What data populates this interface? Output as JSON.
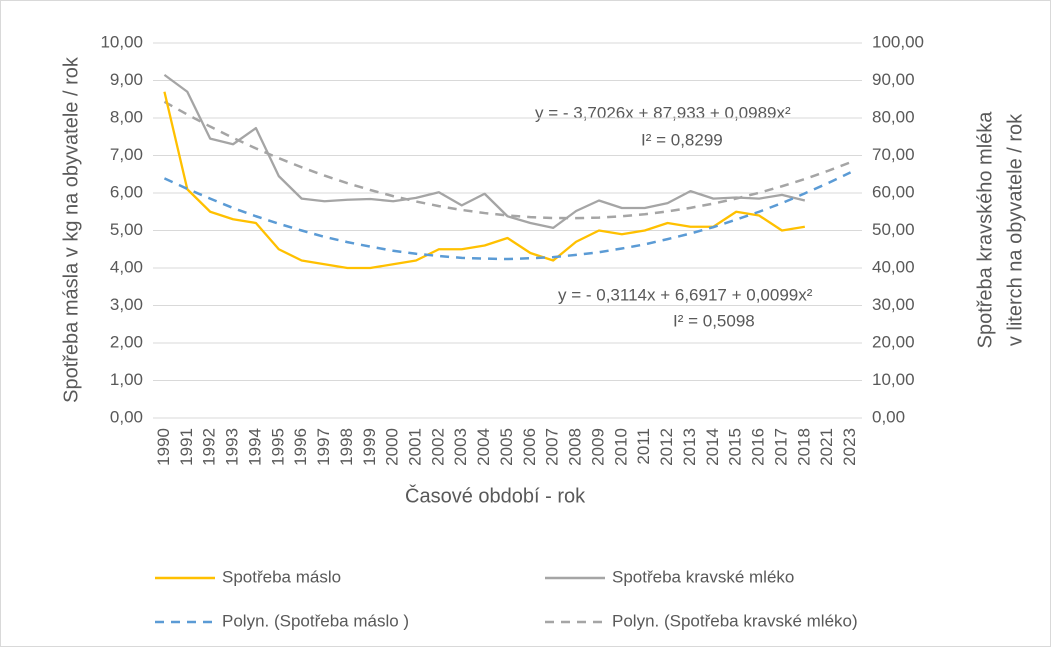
{
  "chart_data": {
    "type": "line",
    "xlabel": "Časové období - rok",
    "ylabel": "Spotřeba másla v kg na obyvatele / rok",
    "y2label": [
      "Spotřeba kravského mléka",
      "v literch na obyvatele / rok"
    ],
    "categories": [
      "1990",
      "1991",
      "1992",
      "1993",
      "1994",
      "1995",
      "1996",
      "1997",
      "1998",
      "1999",
      "2000",
      "2001",
      "2002",
      "2003",
      "2004",
      "2005",
      "2006",
      "2007",
      "2008",
      "2009",
      "2010",
      "2011",
      "2012",
      "2013",
      "2014",
      "2015",
      "2016",
      "2017",
      "2018",
      "2021",
      "2023"
    ],
    "ylim": [
      0,
      10
    ],
    "yticks": [
      {
        "value": 0,
        "label": "0,00"
      },
      {
        "value": 1,
        "label": "1,00"
      },
      {
        "value": 2,
        "label": "2,00"
      },
      {
        "value": 3,
        "label": "3,00"
      },
      {
        "value": 4,
        "label": "4,00"
      },
      {
        "value": 5,
        "label": "5,00"
      },
      {
        "value": 6,
        "label": "6,00"
      },
      {
        "value": 7,
        "label": "7,00"
      },
      {
        "value": 8,
        "label": "8,00"
      },
      {
        "value": 9,
        "label": "9,00"
      },
      {
        "value": 10,
        "label": "10,00"
      }
    ],
    "y2lim": [
      0,
      100
    ],
    "y2ticks": [
      {
        "value": 0,
        "label": "0,00"
      },
      {
        "value": 10,
        "label": "10,00"
      },
      {
        "value": 20,
        "label": "20,00"
      },
      {
        "value": 30,
        "label": "30,00"
      },
      {
        "value": 40,
        "label": "40,00"
      },
      {
        "value": 50,
        "label": "50,00"
      },
      {
        "value": 60,
        "label": "60,00"
      },
      {
        "value": 70,
        "label": "70,00"
      },
      {
        "value": 80,
        "label": "80,00"
      },
      {
        "value": 90,
        "label": "90,00"
      },
      {
        "value": 100,
        "label": "100,00"
      }
    ],
    "grid": true,
    "legend": "bottom",
    "series": [
      {
        "name": "Spotřeba máslo",
        "color": "#ffc000",
        "style": "solid",
        "values": [
          8.7,
          6.1,
          5.5,
          5.3,
          5.2,
          4.5,
          4.2,
          4.1,
          4.0,
          4.0,
          4.1,
          4.2,
          4.5,
          4.5,
          4.6,
          4.8,
          4.4,
          4.2,
          4.7,
          5.0,
          4.9,
          5.0,
          5.2,
          5.1,
          5.1,
          5.5,
          5.4,
          5.0,
          5.1,
          null,
          null
        ]
      },
      {
        "name": "Spotřeba kravské mléko",
        "color": "#a5a5a5",
        "style": "solid",
        "axis": "y2",
        "values": [
          91.5,
          87,
          74.5,
          73,
          77.3,
          64.5,
          58.5,
          57.8,
          58.2,
          58.4,
          57.8,
          58.7,
          60.2,
          56.7,
          59.8,
          53.8,
          52,
          50.7,
          55.2,
          58,
          56,
          56,
          57.3,
          60.5,
          58.5,
          58.8,
          58.5,
          59.5,
          58,
          null,
          null
        ]
      },
      {
        "name": "Polyn. (Spotřeba máslo )",
        "color": "#5b9bd5",
        "style": "dashed",
        "values": [
          6.39,
          6.11,
          5.85,
          5.6,
          5.38,
          5.18,
          5.0,
          4.83,
          4.69,
          4.57,
          4.46,
          4.38,
          4.32,
          4.27,
          4.25,
          4.24,
          4.26,
          4.29,
          4.35,
          4.42,
          4.52,
          4.63,
          4.77,
          4.92,
          5.09,
          5.29,
          5.5,
          5.73,
          5.99,
          6.26,
          6.55
        ]
      },
      {
        "name": "Polyn. (Spotřeba kravské mléko)",
        "color": "#a5a5a5",
        "style": "dashed",
        "axis": "y2",
        "values": [
          84.33,
          80.92,
          77.72,
          74.7,
          71.89,
          69.28,
          66.86,
          64.64,
          62.62,
          60.8,
          59.17,
          57.74,
          56.51,
          55.48,
          54.65,
          54.01,
          53.57,
          53.33,
          53.29,
          53.44,
          53.79,
          54.34,
          55.09,
          56.04,
          57.18,
          58.52,
          60.06,
          61.8,
          63.73,
          65.87,
          68.19
        ]
      }
    ],
    "annotations": [
      "y = - 3,7026x + 87,933 + 0,0989x²",
      "I² = 0,8299",
      "y = - 0,3114x + 6,6917 + 0,0099x²",
      "I² = 0,5098"
    ]
  }
}
